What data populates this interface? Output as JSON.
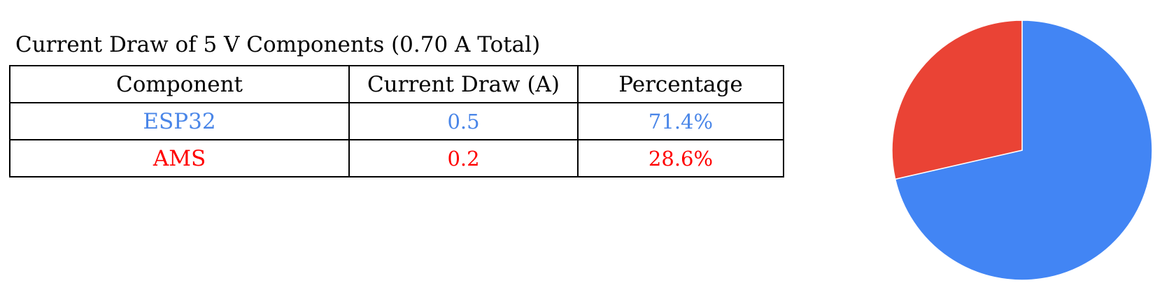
{
  "title": "Current Draw of 5 V Components (0.70 A Total)",
  "table": {
    "headers": [
      "Component",
      "Current Draw (A)",
      "Percentage"
    ],
    "rows": [
      {
        "component": "ESP32",
        "current": "0.5",
        "percentage": "71.4%",
        "color": "#4a86e8"
      },
      {
        "component": "AMS",
        "current": "0.2",
        "percentage": "28.6%",
        "color": "#ff0000"
      }
    ]
  },
  "chart_data": {
    "type": "pie",
    "title": "",
    "labels": [
      "ESP32",
      "AMS"
    ],
    "values": [
      0.5,
      0.2
    ],
    "percentages": [
      71.4,
      28.6
    ],
    "colors": [
      "#4285f4",
      "#ea4335"
    ],
    "start_angle_deg": 0,
    "direction": "clockwise",
    "legend": "none"
  }
}
